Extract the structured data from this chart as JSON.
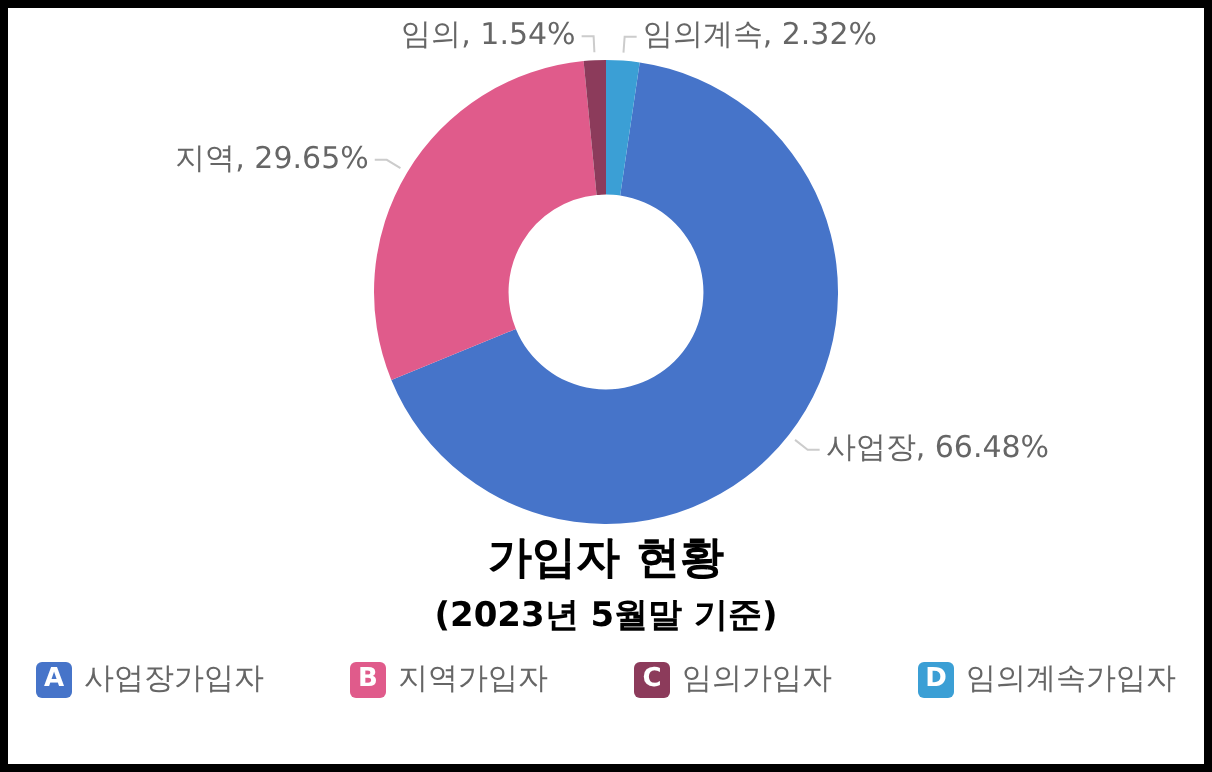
{
  "chart_data": {
    "type": "donut",
    "title": "가입자 현황",
    "subtitle": "(2023년 5월말 기준)",
    "categories": [
      "사업장가입자",
      "지역가입자",
      "임의가입자",
      "임의계속가입자"
    ],
    "values": [
      66.48,
      29.65,
      1.54,
      2.32
    ],
    "colors": [
      "#4674c9",
      "#e05b8b",
      "#8c3b5b",
      "#3b9fd5"
    ],
    "value_labels": [
      "사업장, 66.48%",
      "지역, 29.65%",
      "임의, 1.54%",
      "임의계속, 2.32%"
    ],
    "annotations": [
      "A",
      "B",
      "C",
      "D"
    ],
    "legend": "bottom"
  }
}
